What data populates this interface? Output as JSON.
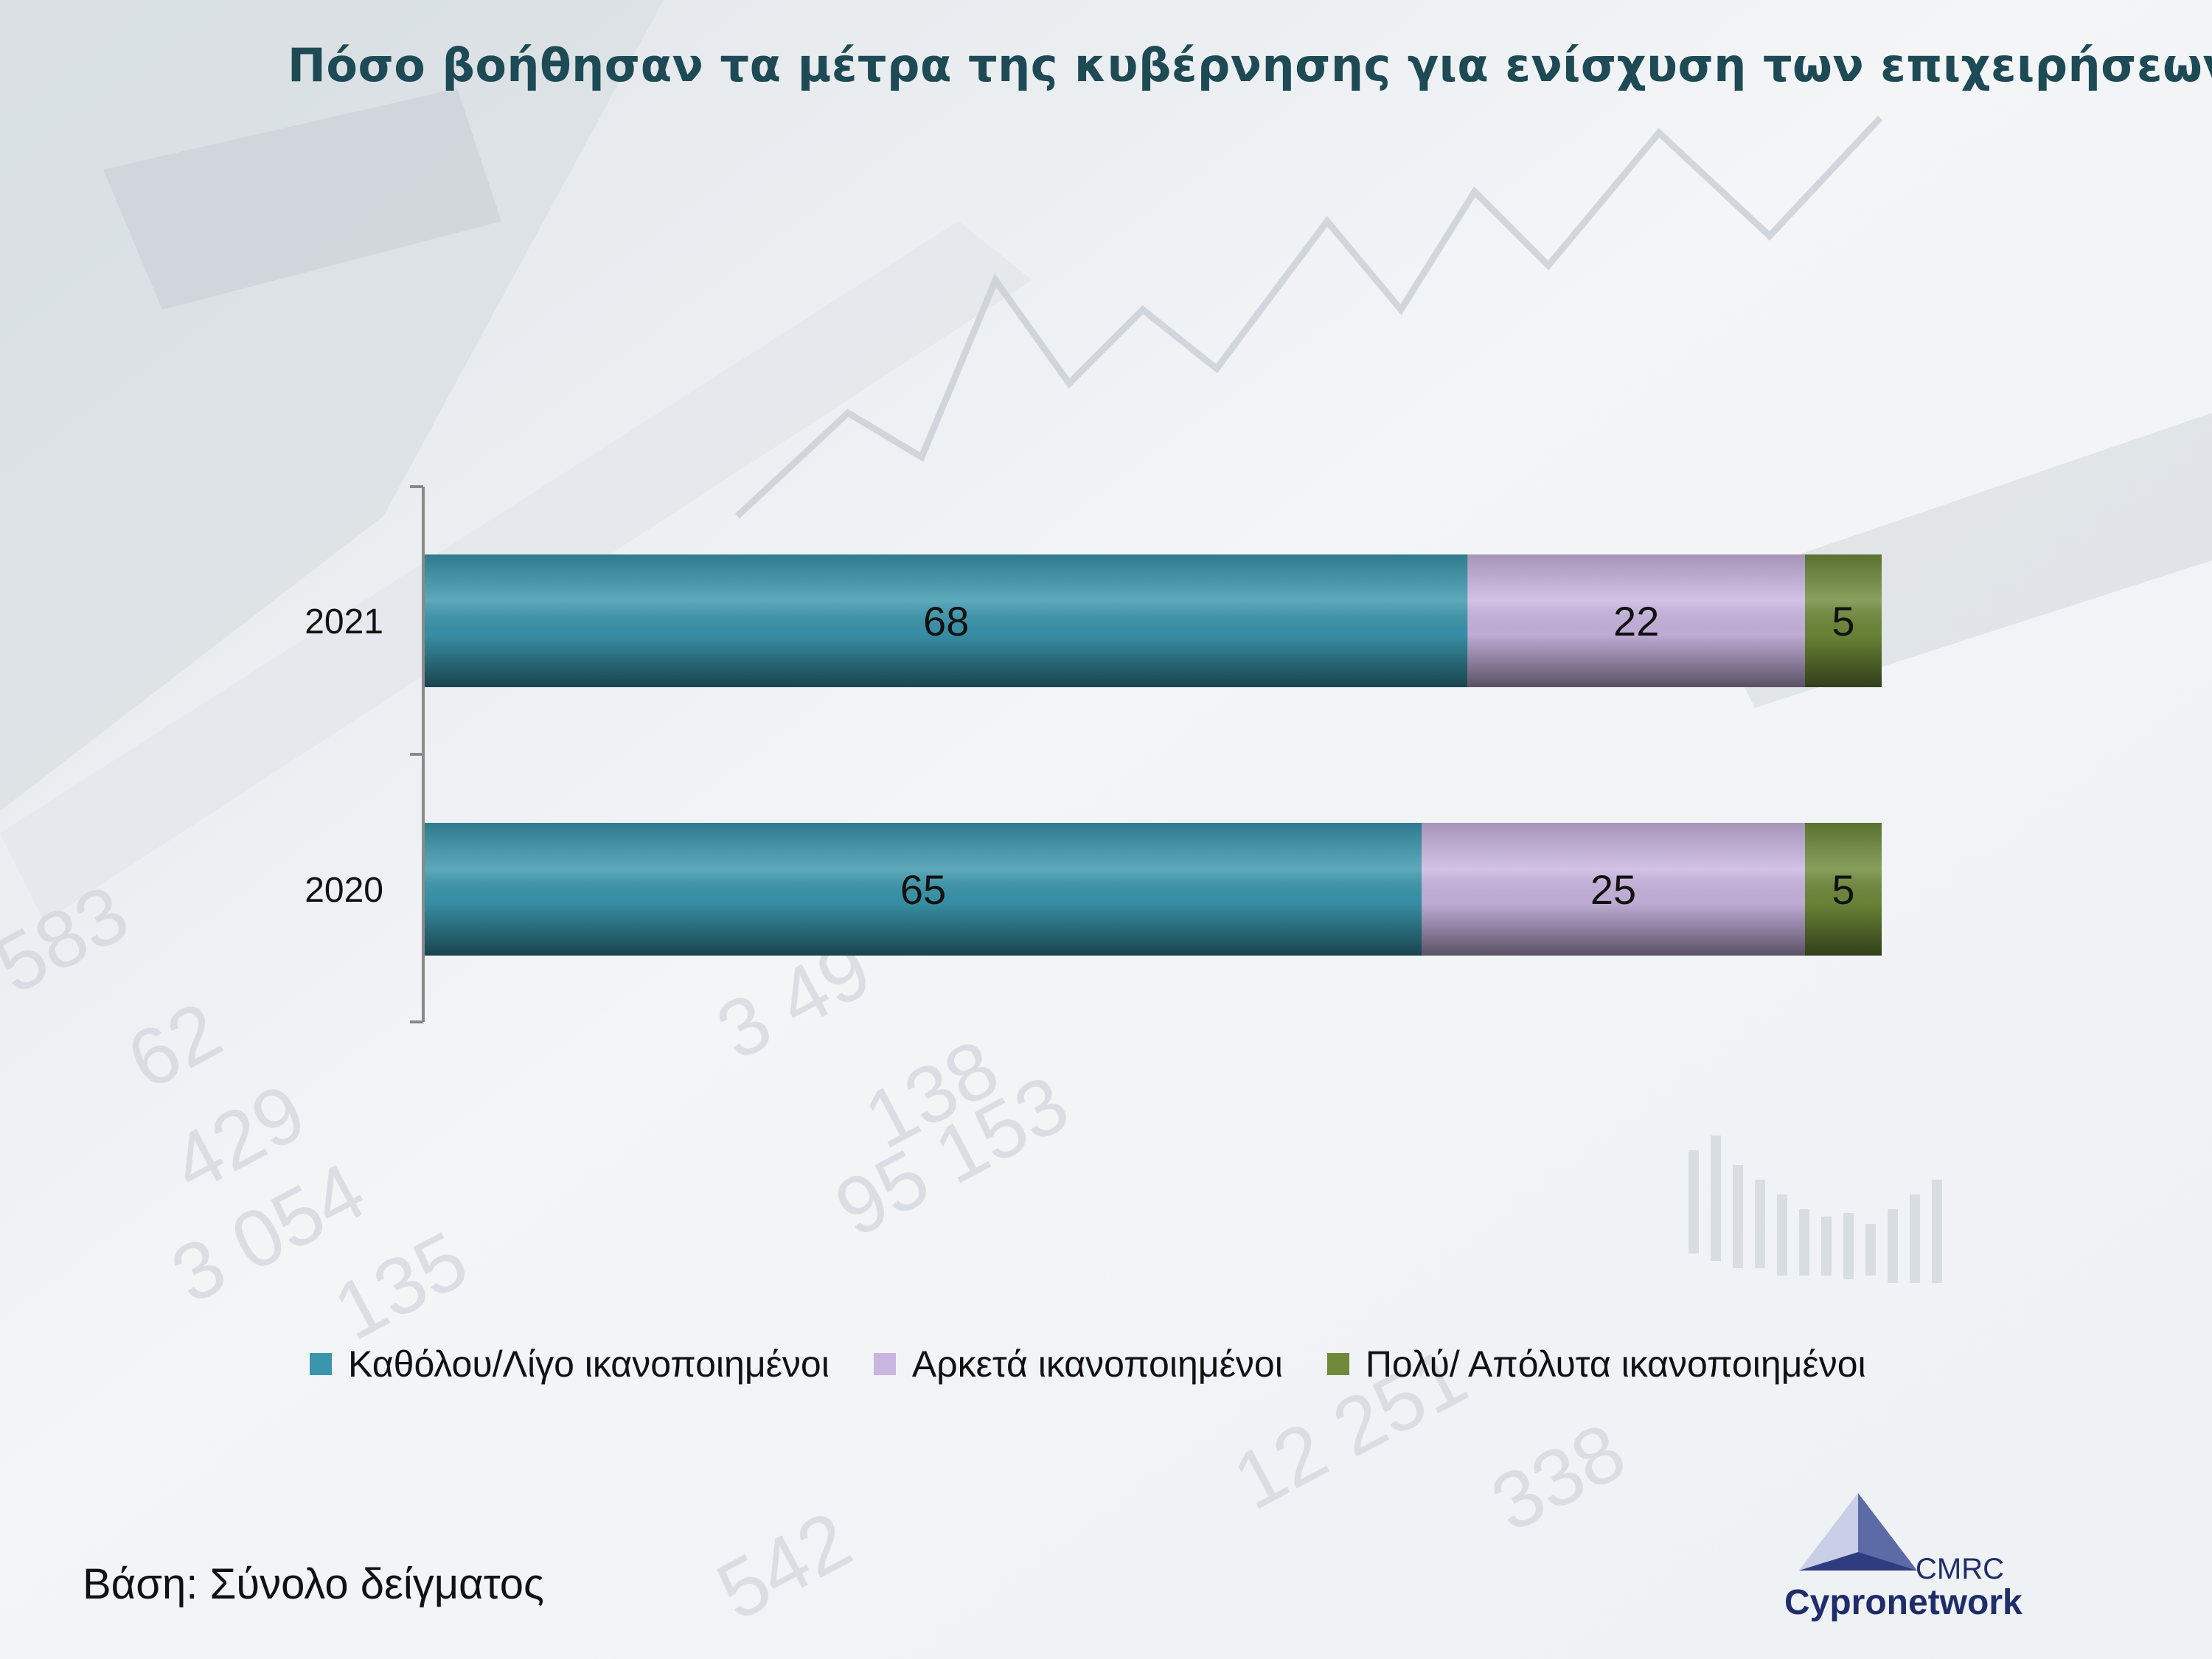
{
  "title": "Πόσο βοήθησαν τα μέτρα της κυβέρνησης για ενίσχυση των επιχειρήσεων",
  "base_note": "Βάση: Σύνολο δείγματος",
  "logo": {
    "short": "CMRC",
    "name": "Cypronetwork"
  },
  "chart_data": {
    "type": "bar",
    "orientation": "horizontal",
    "stacked": true,
    "categories": [
      "2021",
      "2020"
    ],
    "series": [
      {
        "name": "Καθόλου/Λίγο ικανοποιημένοι",
        "values": [
          68,
          65
        ],
        "color": "#3a96ad"
      },
      {
        "name": "Αρκετά ικανοποιημένοι",
        "values": [
          22,
          25
        ],
        "color": "#c9b5e0"
      },
      {
        "name": "Πολύ/ Απόλυτα ικανοποιημένοι",
        "values": [
          5,
          5
        ],
        "color": "#6f8a3a"
      }
    ],
    "xlim": [
      0,
      95
    ],
    "grid": false,
    "legend_position": "bottom"
  }
}
